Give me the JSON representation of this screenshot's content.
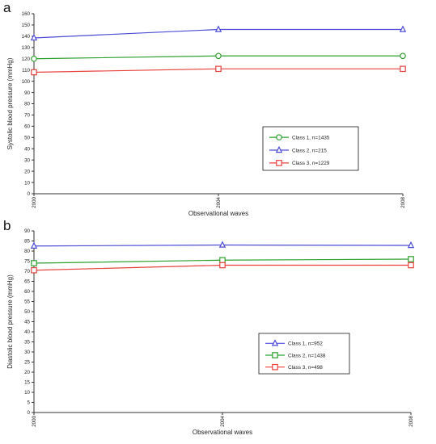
{
  "panels": [
    {
      "letter": "a",
      "ylabel": "Systolic blood pressure (mmHg)",
      "xlabel": "Observational waves",
      "x_ticks": [
        "2000",
        "2004",
        "2008"
      ],
      "y_ticks": [
        "0",
        "10",
        "20",
        "30",
        "40",
        "50",
        "60",
        "70",
        "80",
        "90",
        "100",
        "110",
        "120",
        "130",
        "140",
        "150",
        "160"
      ],
      "legend": [
        "Class 1, n=1435",
        "Class 2, n=215",
        "Class 3, n=1229"
      ]
    },
    {
      "letter": "b",
      "ylabel": "Diastolic blood pressure (mmHg)",
      "xlabel": "Observational waves",
      "x_ticks": [
        "2000",
        "2004",
        "2008"
      ],
      "y_ticks": [
        "0",
        "5",
        "10",
        "15",
        "20",
        "25",
        "30",
        "35",
        "40",
        "45",
        "50",
        "55",
        "60",
        "65",
        "70",
        "75",
        "80",
        "85",
        "90"
      ],
      "legend": [
        "Class 1, n=952",
        "Class 2, n=1438",
        "Class 3, n=498"
      ]
    }
  ],
  "colors": {
    "green": "#2ca02c",
    "blue": "#4b4bd6",
    "red": "#e8413c",
    "axis": "#333333"
  },
  "chart_data": [
    {
      "type": "line",
      "title": "",
      "xlabel": "Observational waves",
      "ylabel": "Systolic blood pressure (mmHg)",
      "x": [
        2000,
        2004,
        2008
      ],
      "ylim": [
        0,
        160
      ],
      "grid": false,
      "legend_position": "center-right",
      "series": [
        {
          "name": "Class 1, n=1435",
          "color": "#2ca02c",
          "marker": "circle",
          "values": [
            120,
            122.5,
            122.5
          ]
        },
        {
          "name": "Class 2, n=215",
          "color": "#4b4bd6",
          "marker": "triangle",
          "values": [
            138.5,
            146,
            146
          ]
        },
        {
          "name": "Class 3, n=1229",
          "color": "#e8413c",
          "marker": "square",
          "values": [
            108,
            111,
            111
          ]
        }
      ]
    },
    {
      "type": "line",
      "title": "",
      "xlabel": "Observational waves",
      "ylabel": "Diastolic blood pressure (mmHg)",
      "x": [
        2000,
        2004,
        2008
      ],
      "ylim": [
        0,
        90
      ],
      "grid": false,
      "legend_position": "center-right",
      "series": [
        {
          "name": "Class 1, n=952",
          "color": "#4b4bd6",
          "marker": "triangle",
          "values": [
            82.5,
            83,
            82.8
          ]
        },
        {
          "name": "Class 2, n=1438",
          "color": "#2ca02c",
          "marker": "square",
          "values": [
            74,
            75.5,
            76
          ]
        },
        {
          "name": "Class 3, n=498",
          "color": "#e8413c",
          "marker": "square",
          "values": [
            70.5,
            73,
            73
          ]
        }
      ]
    }
  ]
}
